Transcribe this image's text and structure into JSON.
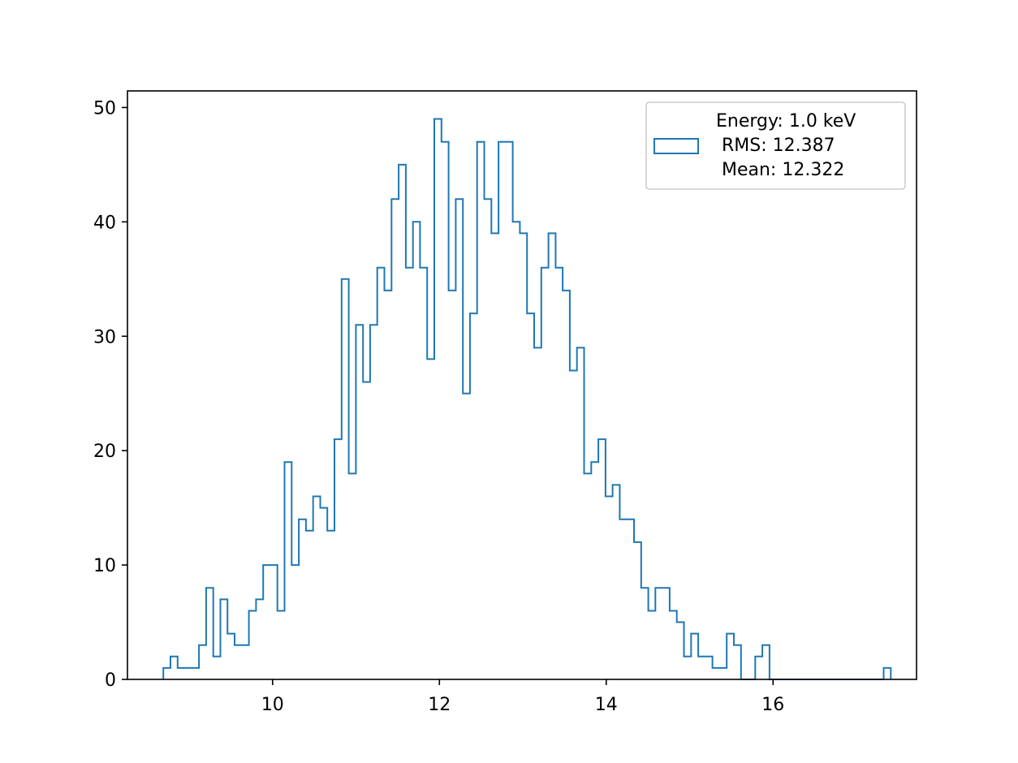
{
  "chart_data": {
    "type": "histogram",
    "title": "",
    "xlabel": "",
    "ylabel": "",
    "xlim": [
      8.26,
      17.72
    ],
    "ylim": [
      0,
      51.45
    ],
    "x_ticks": [
      10,
      12,
      14,
      16
    ],
    "y_ticks": [
      0,
      10,
      20,
      30,
      40,
      50
    ],
    "x_tick_labels": [
      "10",
      "12",
      "14",
      "16"
    ],
    "y_tick_labels": [
      "0",
      "10",
      "20",
      "30",
      "40",
      "50"
    ],
    "grid": false,
    "histtype": "step",
    "line_color": "#1f77b4",
    "legend": {
      "placement": "upper right",
      "lines": [
        "Energy: 1.0 keV",
        " RMS: 12.387",
        " Mean: 12.322"
      ]
    },
    "bin_start": 8.69,
    "bin_width": 0.0855,
    "counts": [
      1,
      2,
      1,
      1,
      1,
      3,
      8,
      2,
      7,
      4,
      3,
      3,
      6,
      7,
      10,
      10,
      6,
      19,
      10,
      14,
      13,
      16,
      15,
      13,
      21,
      35,
      18,
      31,
      26,
      31,
      36,
      34,
      42,
      45,
      36,
      40,
      36,
      28,
      49,
      47,
      34,
      42,
      25,
      32,
      47,
      42,
      39,
      47,
      47,
      40,
      39,
      32,
      29,
      36,
      39,
      36,
      34,
      27,
      29,
      18,
      19,
      21,
      16,
      17,
      14,
      14,
      12,
      8,
      6,
      8,
      8,
      6,
      5,
      2,
      4,
      2,
      2,
      1,
      1,
      4,
      3,
      0,
      0,
      2,
      3,
      0,
      0,
      0,
      0,
      0,
      0,
      0,
      0,
      0,
      0,
      0,
      0,
      0,
      0,
      0,
      0,
      1
    ]
  }
}
